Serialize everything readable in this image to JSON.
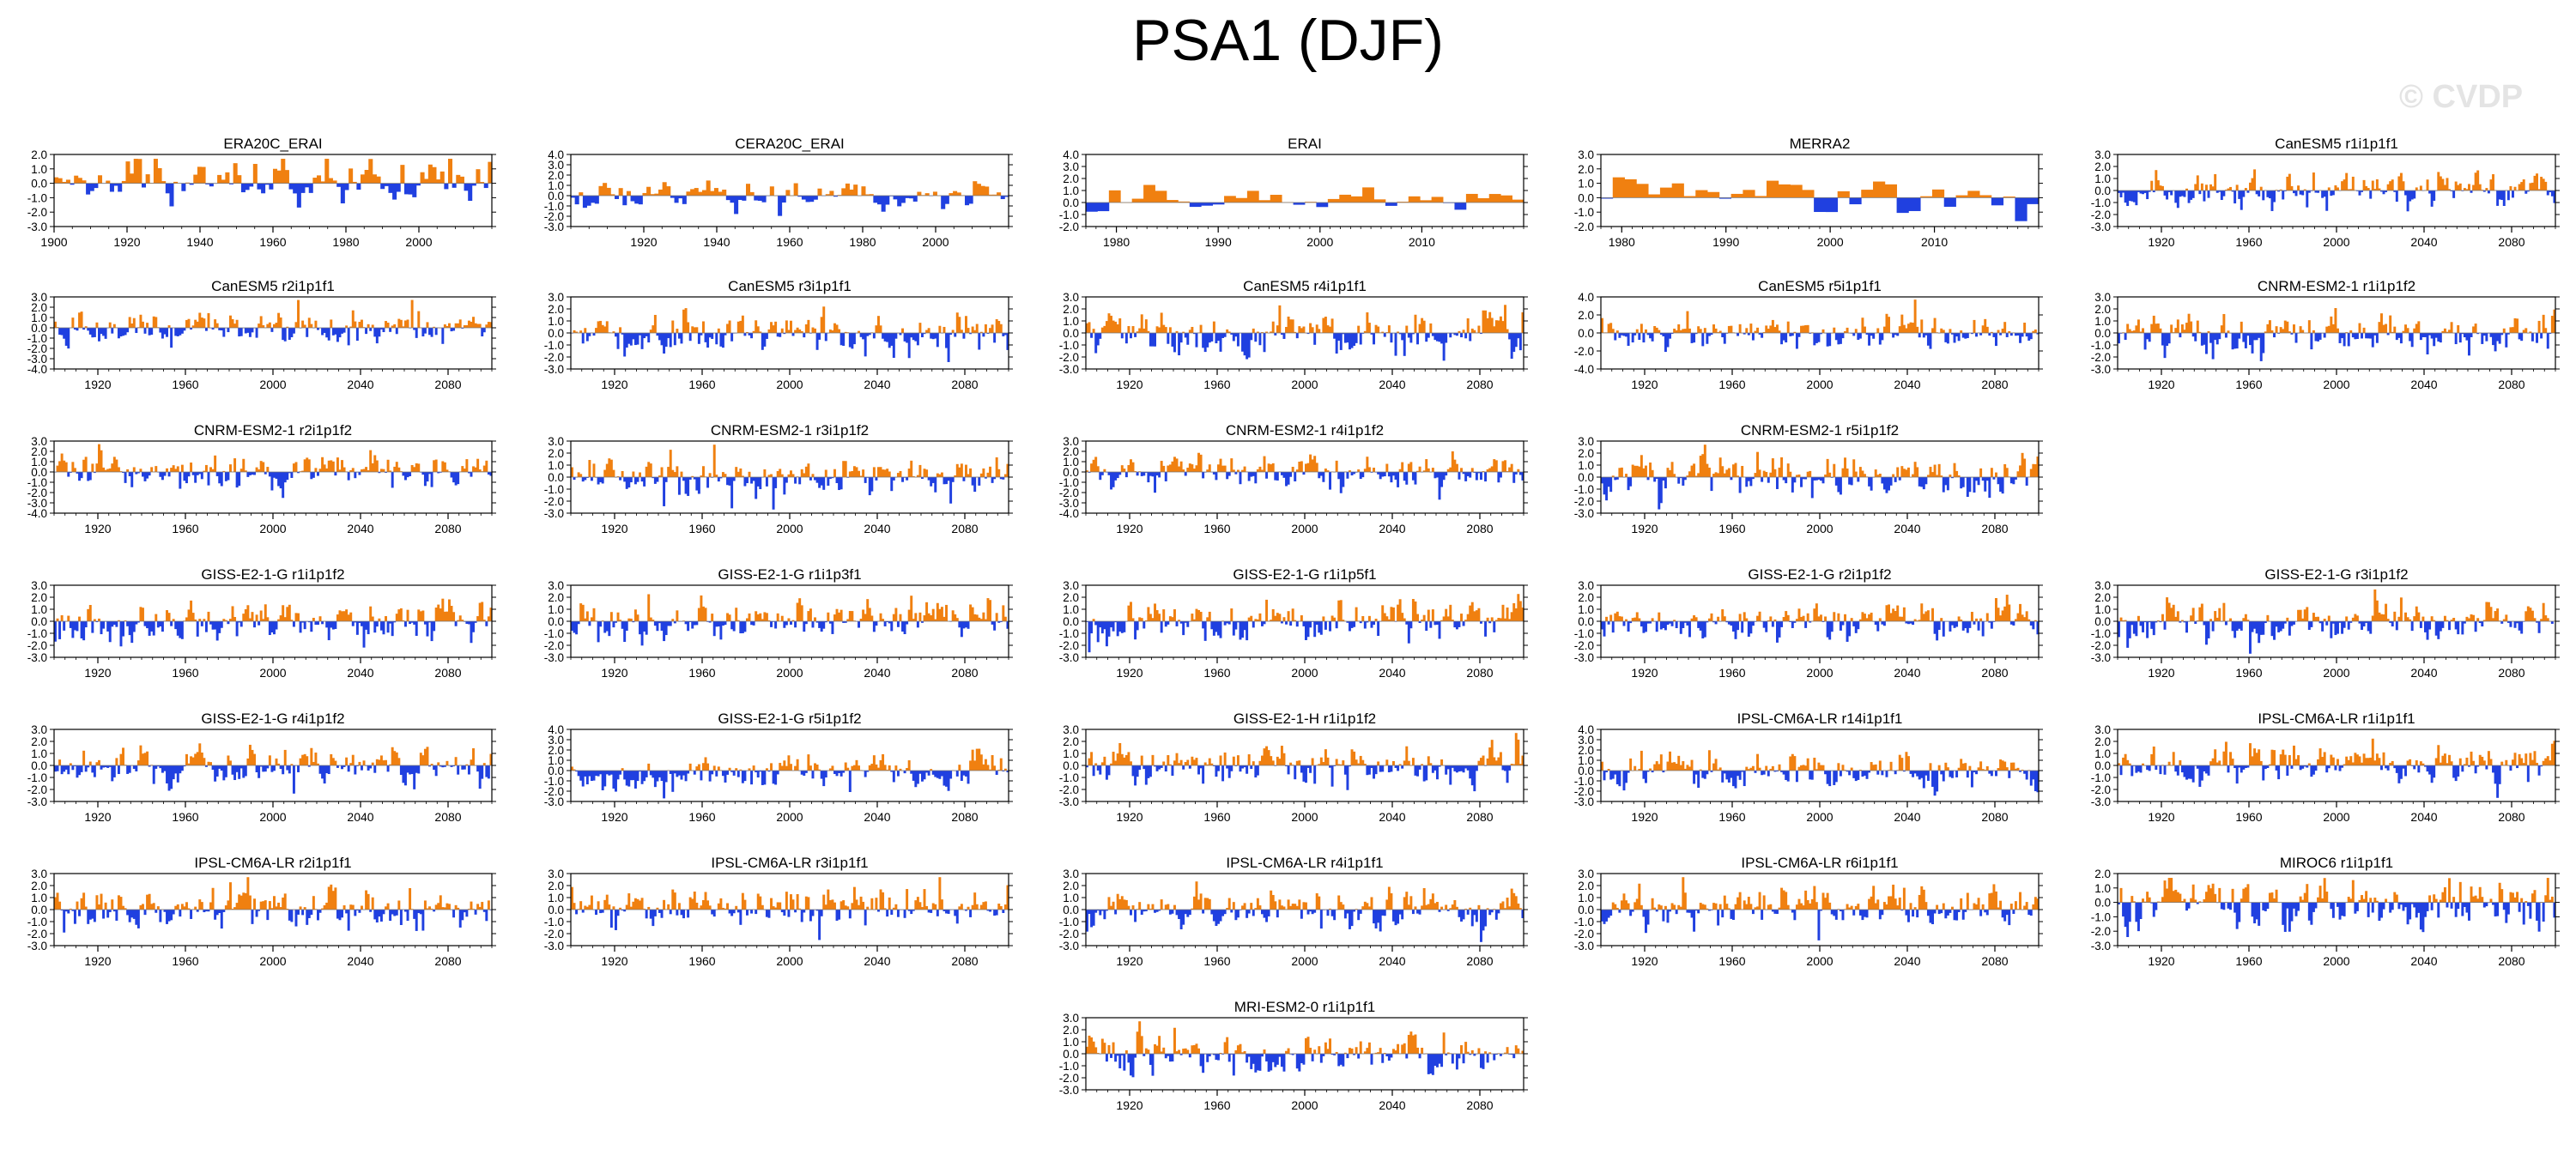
{
  "title": "PSA1 (DJF)",
  "watermark": "© CVDP",
  "colors": {
    "positive": "#f08010",
    "negative": "#2040e0",
    "axis": "#000000",
    "zeroline": "#777777"
  },
  "chart_data": [
    {
      "type": "area",
      "title": "ERA20C_ERAI",
      "xlim": [
        1900,
        2020
      ],
      "xticks": [
        1900,
        1920,
        1940,
        1960,
        1980,
        2000
      ],
      "ylim": [
        -3,
        2
      ],
      "yticks": [
        "2.0",
        "1.0",
        "0.0",
        "-1.0",
        "-2.0",
        "-3.0"
      ],
      "n": 110,
      "amp": 0.9,
      "trend": 0,
      "seed": 11,
      "row": 0,
      "col": 0
    },
    {
      "type": "area",
      "title": "CERA20C_ERAI",
      "xlim": [
        1900,
        2020
      ],
      "xticks": [
        1920,
        1940,
        1960,
        1980,
        2000
      ],
      "ylim": [
        -3,
        4
      ],
      "yticks": [
        "4.0",
        "3.0",
        "2.0",
        "1.0",
        "0.0",
        "-1.0",
        "-2.0",
        "-3.0"
      ],
      "n": 110,
      "amp": 0.8,
      "trend": 0,
      "seed": 12,
      "row": 0,
      "col": 1
    },
    {
      "type": "area",
      "title": "ERAI",
      "xlim": [
        1977,
        2020
      ],
      "xticks": [
        1980,
        1990,
        2000,
        2010
      ],
      "ylim": [
        -2,
        4
      ],
      "yticks": [
        "4.0",
        "3.0",
        "2.0",
        "1.0",
        "0.0",
        "-1.0",
        "-2.0"
      ],
      "n": 38,
      "amp": 0.8,
      "trend": 0,
      "seed": 13,
      "row": 0,
      "col": 2
    },
    {
      "type": "area",
      "title": "MERRA2",
      "xlim": [
        1978,
        2020
      ],
      "xticks": [
        1980,
        1990,
        2000,
        2010
      ],
      "ylim": [
        -2,
        3
      ],
      "yticks": [
        "3.0",
        "2.0",
        "1.0",
        "0.0",
        "-1.0",
        "-2.0"
      ],
      "n": 37,
      "amp": 1.0,
      "trend": 0,
      "seed": 14,
      "row": 0,
      "col": 3
    },
    {
      "type": "area",
      "title": "CanESM5 r1i1p1f1",
      "xlim": [
        1900,
        2100
      ],
      "xticks": [
        1920,
        1960,
        2000,
        2040,
        2080
      ],
      "ylim": [
        -3,
        3
      ],
      "yticks": [
        "3.0",
        "2.0",
        "1.0",
        "0.0",
        "-1.0",
        "-2.0",
        "-3.0"
      ],
      "n": 200,
      "amp": 0.9,
      "trend": 0,
      "seed": 21,
      "row": 0,
      "col": 4
    },
    {
      "type": "area",
      "title": "CanESM5 r2i1p1f1",
      "xlim": [
        1900,
        2100
      ],
      "xticks": [
        1920,
        1960,
        2000,
        2040,
        2080
      ],
      "ylim": [
        -4,
        3
      ],
      "yticks": [
        "3.0",
        "2.0",
        "1.0",
        "0.0",
        "-1.0",
        "-2.0",
        "-3.0",
        "-4.0"
      ],
      "n": 200,
      "amp": 0.9,
      "trend": 0,
      "seed": 22,
      "row": 1,
      "col": 0
    },
    {
      "type": "area",
      "title": "CanESM5 r3i1p1f1",
      "xlim": [
        1900,
        2100
      ],
      "xticks": [
        1920,
        1960,
        2000,
        2040,
        2080
      ],
      "ylim": [
        -3,
        3
      ],
      "yticks": [
        "3.0",
        "2.0",
        "1.0",
        "0.0",
        "-1.0",
        "-2.0",
        "-3.0"
      ],
      "n": 200,
      "amp": 0.95,
      "trend": 0,
      "seed": 23,
      "row": 1,
      "col": 1
    },
    {
      "type": "area",
      "title": "CanESM5 r4i1p1f1",
      "xlim": [
        1900,
        2100
      ],
      "xticks": [
        1920,
        1960,
        2000,
        2040,
        2080
      ],
      "ylim": [
        -3,
        3
      ],
      "yticks": [
        "3.0",
        "2.0",
        "1.0",
        "0.0",
        "-1.0",
        "-2.0",
        "-3.0"
      ],
      "n": 200,
      "amp": 0.95,
      "trend": 0,
      "seed": 24,
      "row": 1,
      "col": 2
    },
    {
      "type": "area",
      "title": "CanESM5 r5i1p1f1",
      "xlim": [
        1900,
        2100
      ],
      "xticks": [
        1920,
        1960,
        2000,
        2040,
        2080
      ],
      "ylim": [
        -4,
        4
      ],
      "yticks": [
        "4.0",
        "2.0",
        "0.0",
        "-2.0",
        "-4.0"
      ],
      "n": 200,
      "amp": 0.95,
      "trend": 0,
      "seed": 25,
      "row": 1,
      "col": 3
    },
    {
      "type": "area",
      "title": "CNRM-ESM2-1 r1i1p1f2",
      "xlim": [
        1900,
        2100
      ],
      "xticks": [
        1920,
        1960,
        2000,
        2040,
        2080
      ],
      "ylim": [
        -3,
        3
      ],
      "yticks": [
        "3.0",
        "2.0",
        "1.0",
        "0.0",
        "-1.0",
        "-2.0",
        "-3.0"
      ],
      "n": 200,
      "amp": 0.95,
      "trend": 0,
      "seed": 31,
      "row": 1,
      "col": 4
    },
    {
      "type": "area",
      "title": "CNRM-ESM2-1 r2i1p1f2",
      "xlim": [
        1900,
        2100
      ],
      "xticks": [
        1920,
        1960,
        2000,
        2040,
        2080
      ],
      "ylim": [
        -4,
        3
      ],
      "yticks": [
        "3.0",
        "2.0",
        "1.0",
        "0.0",
        "-1.0",
        "-2.0",
        "-3.0",
        "-4.0"
      ],
      "n": 200,
      "amp": 0.95,
      "trend": 0,
      "seed": 32,
      "row": 2,
      "col": 0
    },
    {
      "type": "area",
      "title": "CNRM-ESM2-1 r3i1p1f2",
      "xlim": [
        1900,
        2100
      ],
      "xticks": [
        1920,
        1960,
        2000,
        2040,
        2080
      ],
      "ylim": [
        -3,
        3
      ],
      "yticks": [
        "3.0",
        "2.0",
        "1.0",
        "0.0",
        "-1.0",
        "-2.0",
        "-3.0"
      ],
      "n": 200,
      "amp": 0.95,
      "trend": 0,
      "seed": 33,
      "row": 2,
      "col": 1
    },
    {
      "type": "area",
      "title": "CNRM-ESM2-1 r4i1p1f2",
      "xlim": [
        1900,
        2100
      ],
      "xticks": [
        1920,
        1960,
        2000,
        2040,
        2080
      ],
      "ylim": [
        -4,
        3
      ],
      "yticks": [
        "3.0",
        "2.0",
        "1.0",
        "0.0",
        "-1.0",
        "-2.0",
        "-3.0",
        "-4.0"
      ],
      "n": 200,
      "amp": 0.95,
      "trend": 0,
      "seed": 34,
      "row": 2,
      "col": 2
    },
    {
      "type": "area",
      "title": "CNRM-ESM2-1 r5i1p1f2",
      "xlim": [
        1900,
        2100
      ],
      "xticks": [
        1920,
        1960,
        2000,
        2040,
        2080
      ],
      "ylim": [
        -3,
        3
      ],
      "yticks": [
        "3.0",
        "2.0",
        "1.0",
        "0.0",
        "-1.0",
        "-2.0",
        "-3.0"
      ],
      "n": 200,
      "amp": 0.95,
      "trend": 0,
      "seed": 35,
      "row": 2,
      "col": 3
    },
    {
      "type": "area",
      "title": "GISS-E2-1-G r1i1p1f2",
      "xlim": [
        1900,
        2100
      ],
      "xticks": [
        1920,
        1960,
        2000,
        2040,
        2080
      ],
      "ylim": [
        -3,
        3
      ],
      "yticks": [
        "3.0",
        "2.0",
        "1.0",
        "0.0",
        "-1.0",
        "-2.0",
        "-3.0"
      ],
      "n": 200,
      "amp": 0.9,
      "trend": 1.0,
      "seed": 41,
      "row": 3,
      "col": 0
    },
    {
      "type": "area",
      "title": "GISS-E2-1-G r1i1p3f1",
      "xlim": [
        1900,
        2100
      ],
      "xticks": [
        1920,
        1960,
        2000,
        2040,
        2080
      ],
      "ylim": [
        -3,
        3
      ],
      "yticks": [
        "3.0",
        "2.0",
        "1.0",
        "0.0",
        "-1.0",
        "-2.0",
        "-3.0"
      ],
      "n": 200,
      "amp": 0.9,
      "trend": 0.6,
      "seed": 42,
      "row": 3,
      "col": 1
    },
    {
      "type": "area",
      "title": "GISS-E2-1-G r1i1p5f1",
      "xlim": [
        1900,
        2100
      ],
      "xticks": [
        1920,
        1960,
        2000,
        2040,
        2080
      ],
      "ylim": [
        -3,
        3
      ],
      "yticks": [
        "3.0",
        "2.0",
        "1.0",
        "0.0",
        "-1.0",
        "-2.0",
        "-3.0"
      ],
      "n": 200,
      "amp": 0.9,
      "trend": 0.9,
      "seed": 43,
      "row": 3,
      "col": 2
    },
    {
      "type": "area",
      "title": "GISS-E2-1-G r2i1p1f2",
      "xlim": [
        1900,
        2100
      ],
      "xticks": [
        1920,
        1960,
        2000,
        2040,
        2080
      ],
      "ylim": [
        -3,
        3
      ],
      "yticks": [
        "3.0",
        "2.0",
        "1.0",
        "0.0",
        "-1.0",
        "-2.0",
        "-3.0"
      ],
      "n": 200,
      "amp": 0.9,
      "trend": 0.8,
      "seed": 44,
      "row": 3,
      "col": 3
    },
    {
      "type": "area",
      "title": "GISS-E2-1-G r3i1p1f2",
      "xlim": [
        1900,
        2100
      ],
      "xticks": [
        1920,
        1960,
        2000,
        2040,
        2080
      ],
      "ylim": [
        -3,
        3
      ],
      "yticks": [
        "3.0",
        "2.0",
        "1.0",
        "0.0",
        "-1.0",
        "-2.0",
        "-3.0"
      ],
      "n": 200,
      "amp": 0.9,
      "trend": 0.8,
      "seed": 45,
      "row": 3,
      "col": 4
    },
    {
      "type": "area",
      "title": "GISS-E2-1-G r4i1p1f2",
      "xlim": [
        1900,
        2100
      ],
      "xticks": [
        1920,
        1960,
        2000,
        2040,
        2080
      ],
      "ylim": [
        -3,
        3
      ],
      "yticks": [
        "3.0",
        "2.0",
        "1.0",
        "0.0",
        "-1.0",
        "-2.0",
        "-3.0"
      ],
      "n": 200,
      "amp": 0.9,
      "trend": 0.8,
      "seed": 46,
      "row": 4,
      "col": 0
    },
    {
      "type": "area",
      "title": "GISS-E2-1-G r5i1p1f2",
      "xlim": [
        1900,
        2100
      ],
      "xticks": [
        1920,
        1960,
        2000,
        2040,
        2080
      ],
      "ylim": [
        -3,
        4
      ],
      "yticks": [
        "4.0",
        "3.0",
        "2.0",
        "1.0",
        "0.0",
        "-1.0",
        "-2.0",
        "-3.0"
      ],
      "n": 200,
      "amp": 0.9,
      "trend": 1.1,
      "seed": 47,
      "row": 4,
      "col": 1
    },
    {
      "type": "area",
      "title": "GISS-E2-1-H r1i1p1f2",
      "xlim": [
        1900,
        2100
      ],
      "xticks": [
        1920,
        1960,
        2000,
        2040,
        2080
      ],
      "ylim": [
        -3,
        3
      ],
      "yticks": [
        "3.0",
        "2.0",
        "1.0",
        "0.0",
        "-1.0",
        "-2.0",
        "-3.0"
      ],
      "n": 200,
      "amp": 0.95,
      "trend": 0,
      "seed": 48,
      "row": 4,
      "col": 2
    },
    {
      "type": "area",
      "title": "IPSL-CM6A-LR r14i1p1f1",
      "xlim": [
        1900,
        2100
      ],
      "xticks": [
        1920,
        1960,
        2000,
        2040,
        2080
      ],
      "ylim": [
        -3,
        4
      ],
      "yticks": [
        "4.0",
        "3.0",
        "2.0",
        "1.0",
        "0.0",
        "-1.0",
        "-2.0",
        "-3.0"
      ],
      "n": 200,
      "amp": 0.95,
      "trend": 0,
      "seed": 51,
      "row": 4,
      "col": 3
    },
    {
      "type": "area",
      "title": "IPSL-CM6A-LR r1i1p1f1",
      "xlim": [
        1900,
        2100
      ],
      "xticks": [
        1920,
        1960,
        2000,
        2040,
        2080
      ],
      "ylim": [
        -3,
        3
      ],
      "yticks": [
        "3.0",
        "2.0",
        "1.0",
        "0.0",
        "-1.0",
        "-2.0",
        "-3.0"
      ],
      "n": 200,
      "amp": 0.95,
      "trend": 0,
      "seed": 52,
      "row": 4,
      "col": 4
    },
    {
      "type": "area",
      "title": "IPSL-CM6A-LR r2i1p1f1",
      "xlim": [
        1900,
        2100
      ],
      "xticks": [
        1920,
        1960,
        2000,
        2040,
        2080
      ],
      "ylim": [
        -3,
        3
      ],
      "yticks": [
        "3.0",
        "2.0",
        "1.0",
        "0.0",
        "-1.0",
        "-2.0",
        "-3.0"
      ],
      "n": 200,
      "amp": 0.95,
      "trend": 0,
      "seed": 53,
      "row": 5,
      "col": 0
    },
    {
      "type": "area",
      "title": "IPSL-CM6A-LR r3i1p1f1",
      "xlim": [
        1900,
        2100
      ],
      "xticks": [
        1920,
        1960,
        2000,
        2040,
        2080
      ],
      "ylim": [
        -3,
        3
      ],
      "yticks": [
        "3.0",
        "2.0",
        "1.0",
        "0.0",
        "-1.0",
        "-2.0",
        "-3.0"
      ],
      "n": 200,
      "amp": 0.95,
      "trend": 0,
      "seed": 54,
      "row": 5,
      "col": 1
    },
    {
      "type": "area",
      "title": "IPSL-CM6A-LR r4i1p1f1",
      "xlim": [
        1900,
        2100
      ],
      "xticks": [
        1920,
        1960,
        2000,
        2040,
        2080
      ],
      "ylim": [
        -3,
        3
      ],
      "yticks": [
        "3.0",
        "2.0",
        "1.0",
        "0.0",
        "-1.0",
        "-2.0",
        "-3.0"
      ],
      "n": 200,
      "amp": 0.95,
      "trend": 0,
      "seed": 55,
      "row": 5,
      "col": 2
    },
    {
      "type": "area",
      "title": "IPSL-CM6A-LR r6i1p1f1",
      "xlim": [
        1900,
        2100
      ],
      "xticks": [
        1920,
        1960,
        2000,
        2040,
        2080
      ],
      "ylim": [
        -3,
        3
      ],
      "yticks": [
        "3.0",
        "2.0",
        "1.0",
        "0.0",
        "-1.0",
        "-2.0",
        "-3.0"
      ],
      "n": 200,
      "amp": 0.95,
      "trend": 0,
      "seed": 56,
      "row": 5,
      "col": 3
    },
    {
      "type": "area",
      "title": "MIROC6 r1i1p1f1",
      "xlim": [
        1900,
        2100
      ],
      "xticks": [
        1920,
        1960,
        2000,
        2040,
        2080
      ],
      "ylim": [
        -3,
        2
      ],
      "yticks": [
        "2.0",
        "1.0",
        "0.0",
        "-1.0",
        "-2.0",
        "-3.0"
      ],
      "n": 200,
      "amp": 0.95,
      "trend": 0,
      "seed": 57,
      "row": 5,
      "col": 4
    },
    {
      "type": "area",
      "title": "MRI-ESM2-0 r1i1p1f1",
      "xlim": [
        1900,
        2100
      ],
      "xticks": [
        1920,
        1960,
        2000,
        2040,
        2080
      ],
      "ylim": [
        -3,
        3
      ],
      "yticks": [
        "3.0",
        "2.0",
        "1.0",
        "0.0",
        "-1.0",
        "-2.0",
        "-3.0"
      ],
      "n": 200,
      "amp": 0.95,
      "trend": 0.5,
      "seed": 58,
      "row": 6,
      "col": 2
    }
  ]
}
